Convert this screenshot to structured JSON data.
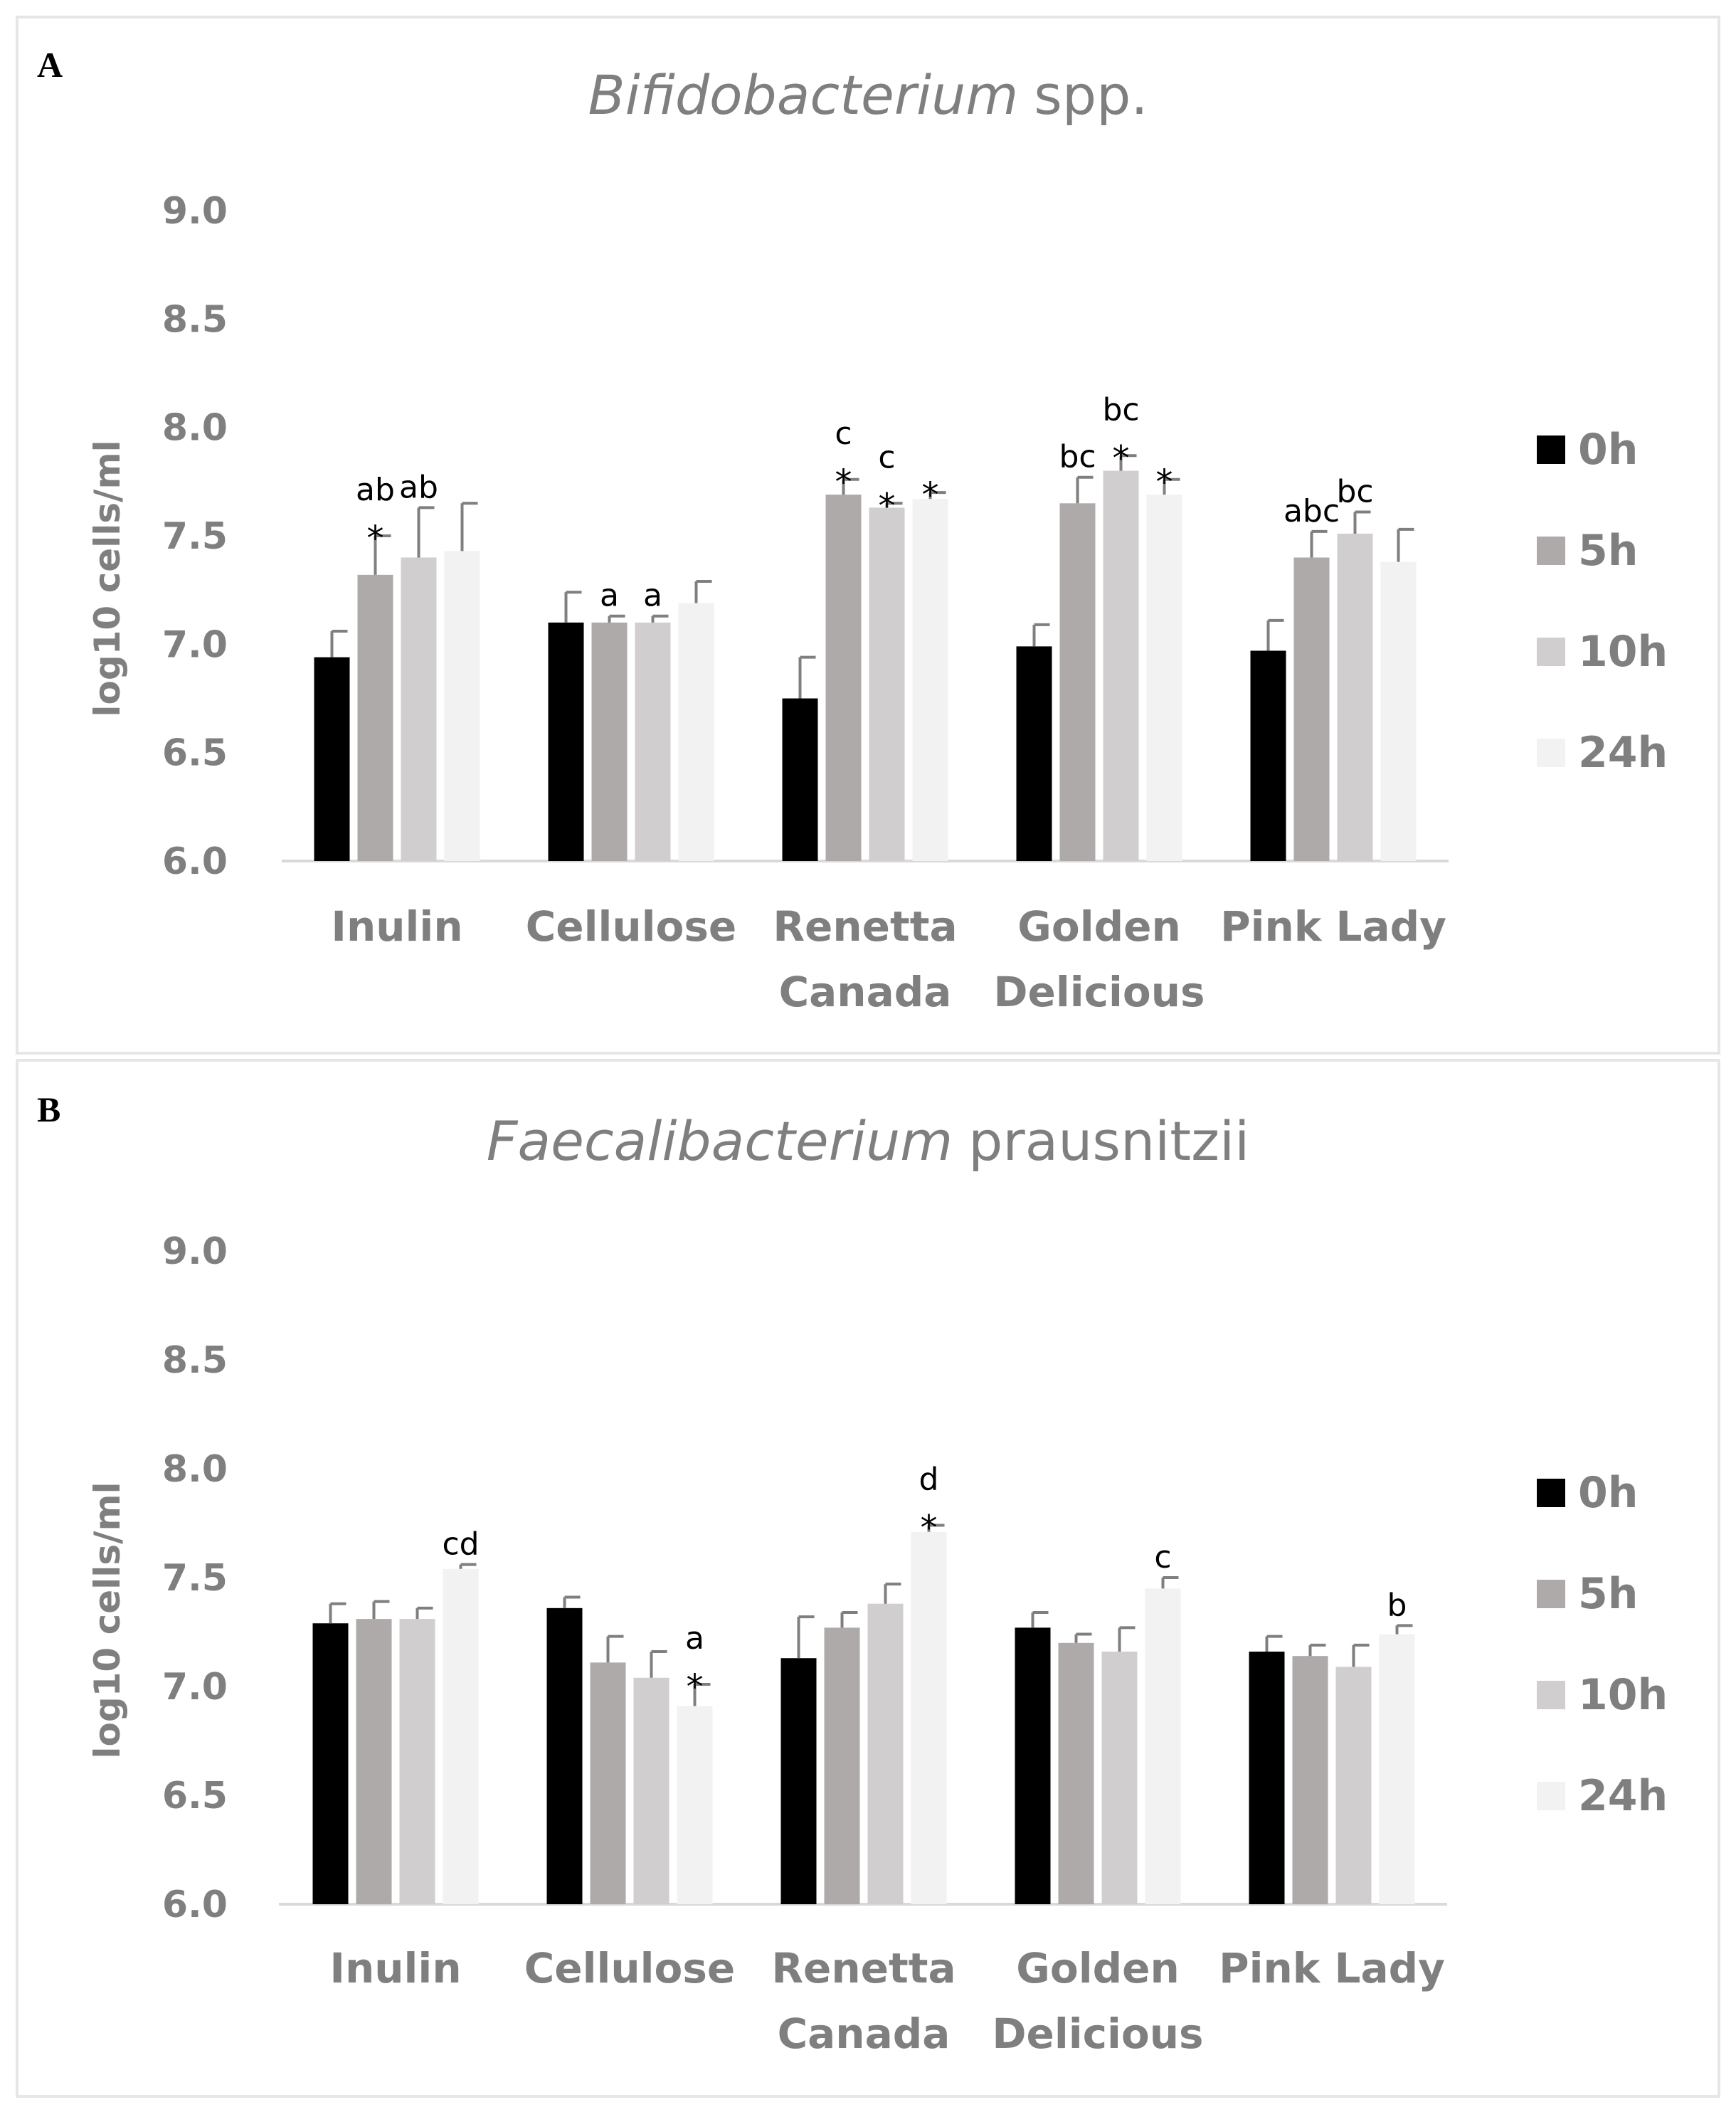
{
  "panels": [
    {
      "letter": "A",
      "title_italic": "Bifidobacterium",
      "title_rest": "spp.",
      "ylabel": "log10 cells/ml"
    },
    {
      "letter": "B",
      "title_italic": "Faecalibacterium",
      "title_rest": "prausnitzii",
      "ylabel": "log10 cells/ml"
    }
  ],
  "colors": {
    "0h": "#000000",
    "5h": "#aeaaaa",
    "10h": "#d0cece",
    "24h": "#f2f2f2",
    "axis": "#d9d9d9",
    "text": "#7f7f7f"
  },
  "chart_data": [
    {
      "type": "bar",
      "title": "Bifidobacterium spp.",
      "ylabel": "log10 cells/ml",
      "xlabel": "",
      "ylim": [
        6.0,
        9.0
      ],
      "yticks": [
        "6.0",
        "6.5",
        "7.0",
        "7.5",
        "8.0",
        "8.5",
        "9.0"
      ],
      "categories": [
        [
          "Inulin"
        ],
        [
          "Cellulose"
        ],
        [
          "Renetta",
          "Canada"
        ],
        [
          "Golden",
          "Delicious"
        ],
        [
          "Pink Lady"
        ]
      ],
      "series": [
        {
          "name": "0h",
          "values": [
            6.94,
            7.1,
            6.75,
            6.99,
            6.97
          ],
          "errors": [
            0.12,
            0.14,
            0.19,
            0.1,
            0.14
          ]
        },
        {
          "name": "5h",
          "values": [
            7.32,
            7.1,
            7.69,
            7.65,
            7.4
          ],
          "errors": [
            0.18,
            0.03,
            0.07,
            0.12,
            0.12
          ]
        },
        {
          "name": "10h",
          "values": [
            7.4,
            7.1,
            7.63,
            7.8,
            7.51
          ],
          "errors": [
            0.23,
            0.03,
            0.02,
            0.07,
            0.1
          ]
        },
        {
          "name": "24h",
          "values": [
            7.43,
            7.19,
            7.67,
            7.69,
            7.38
          ],
          "errors": [
            0.22,
            0.1,
            0.03,
            0.07,
            0.15
          ]
        }
      ],
      "annotations": [
        {
          "cat": 0,
          "series": 1,
          "letter": "ab",
          "star": true
        },
        {
          "cat": 0,
          "series": 2,
          "letter": "ab",
          "star": false
        },
        {
          "cat": 1,
          "series": 1,
          "letter": "a",
          "star": false
        },
        {
          "cat": 1,
          "series": 2,
          "letter": "a",
          "star": false
        },
        {
          "cat": 2,
          "series": 1,
          "letter": "c",
          "star": true
        },
        {
          "cat": 2,
          "series": 2,
          "letter": "c",
          "star": true
        },
        {
          "cat": 2,
          "series": 3,
          "letter": "",
          "star": true
        },
        {
          "cat": 3,
          "series": 1,
          "letter": "bc",
          "star": false
        },
        {
          "cat": 3,
          "series": 2,
          "letter": "bc",
          "star": true
        },
        {
          "cat": 3,
          "series": 3,
          "letter": "",
          "star": true
        },
        {
          "cat": 4,
          "series": 1,
          "letter": "abc",
          "star": false
        },
        {
          "cat": 4,
          "series": 2,
          "letter": "bc",
          "star": false
        }
      ],
      "legend": [
        "0h",
        "5h",
        "10h",
        "24h"
      ]
    },
    {
      "type": "bar",
      "title": "Faecalibacterium prausnitzii",
      "ylabel": "log10 cells/ml",
      "xlabel": "",
      "ylim": [
        6.0,
        9.0
      ],
      "yticks": [
        "6.0",
        "6.5",
        "7.0",
        "7.5",
        "8.0",
        "8.5",
        "9.0"
      ],
      "categories": [
        [
          "Inulin"
        ],
        [
          "Cellulose"
        ],
        [
          "Renetta",
          "Canada"
        ],
        [
          "Golden",
          "Delicious"
        ],
        [
          "Pink Lady"
        ]
      ],
      "series": [
        {
          "name": "0h",
          "values": [
            7.29,
            7.36,
            7.13,
            7.27,
            7.16
          ],
          "errors": [
            0.09,
            0.05,
            0.19,
            0.07,
            0.07
          ]
        },
        {
          "name": "5h",
          "values": [
            7.31,
            7.11,
            7.27,
            7.2,
            7.14
          ],
          "errors": [
            0.08,
            0.12,
            0.07,
            0.04,
            0.05
          ]
        },
        {
          "name": "10h",
          "values": [
            7.31,
            7.04,
            7.38,
            7.16,
            7.09
          ],
          "errors": [
            0.05,
            0.12,
            0.09,
            0.11,
            0.1
          ]
        },
        {
          "name": "24h",
          "values": [
            7.54,
            6.91,
            7.71,
            7.45,
            7.24
          ],
          "errors": [
            0.02,
            0.1,
            0.03,
            0.05,
            0.04
          ]
        }
      ],
      "annotations": [
        {
          "cat": 0,
          "series": 3,
          "letter": "cd",
          "star": false
        },
        {
          "cat": 1,
          "series": 3,
          "letter": "a",
          "star": true
        },
        {
          "cat": 2,
          "series": 3,
          "letter": "d",
          "star": true
        },
        {
          "cat": 3,
          "series": 3,
          "letter": "c",
          "star": false
        },
        {
          "cat": 4,
          "series": 3,
          "letter": "b",
          "star": false
        }
      ],
      "legend": [
        "0h",
        "5h",
        "10h",
        "24h"
      ]
    }
  ]
}
